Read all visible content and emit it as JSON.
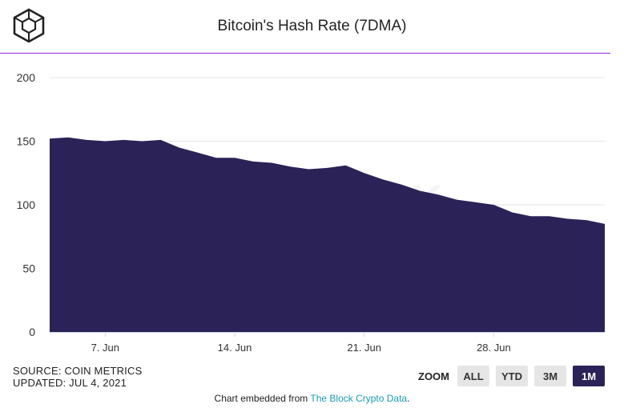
{
  "header": {
    "title": "Bitcoin's Hash Rate (7DMA)",
    "logo_icon": "the-block-cube-logo-icon"
  },
  "footer": {
    "source": "SOURCE: COIN METRICS",
    "updated": "UPDATED: JUL 4, 2021",
    "embed_prefix": "Chart embedded from ",
    "embed_link": "The Block Crypto Data",
    "embed_suffix": "."
  },
  "zoom": {
    "label": "ZOOM",
    "buttons": [
      {
        "label": "ALL",
        "active": false
      },
      {
        "label": "YTD",
        "active": false
      },
      {
        "label": "3M",
        "active": false
      },
      {
        "label": "1M",
        "active": true
      }
    ]
  },
  "watermark": "THE BLOCK",
  "colors": {
    "area": "#2b2257",
    "accent_line": "#8a2be2",
    "link": "#1a9bb2",
    "zoom_active": "#2b2257",
    "zoom_inactive": "#e6e6e6"
  },
  "chart_data": {
    "type": "area",
    "title": "Bitcoin's Hash Rate (7DMA)",
    "xlabel": "",
    "ylabel": "",
    "ylim": [
      0,
      200
    ],
    "yticks": [
      0,
      50,
      100,
      150,
      200
    ],
    "xlim": [
      "2021-06-04",
      "2021-07-04"
    ],
    "xticks": [
      {
        "date": "2021-06-07",
        "label": "7. Jun"
      },
      {
        "date": "2021-06-14",
        "label": "14. Jun"
      },
      {
        "date": "2021-06-21",
        "label": "21. Jun"
      },
      {
        "date": "2021-06-28",
        "label": "28. Jun"
      }
    ],
    "grid": true,
    "legend": "none",
    "series": [
      {
        "x": [
          "2021-06-04",
          "2021-06-05",
          "2021-06-06",
          "2021-06-07",
          "2021-06-08",
          "2021-06-09",
          "2021-06-10",
          "2021-06-11",
          "2021-06-12",
          "2021-06-13",
          "2021-06-14",
          "2021-06-15",
          "2021-06-16",
          "2021-06-17",
          "2021-06-18",
          "2021-06-19",
          "2021-06-20",
          "2021-06-21",
          "2021-06-22",
          "2021-06-23",
          "2021-06-24",
          "2021-06-25",
          "2021-06-26",
          "2021-06-27",
          "2021-06-28",
          "2021-06-29",
          "2021-06-30",
          "2021-07-01",
          "2021-07-02",
          "2021-07-03",
          "2021-07-04"
        ],
        "values": [
          152,
          153,
          151,
          150,
          151,
          150,
          151,
          145,
          141,
          137,
          137,
          134,
          133,
          130,
          128,
          129,
          131,
          125,
          120,
          116,
          111,
          108,
          104,
          102,
          100,
          94,
          91,
          91,
          89,
          88,
          85
        ]
      }
    ]
  }
}
